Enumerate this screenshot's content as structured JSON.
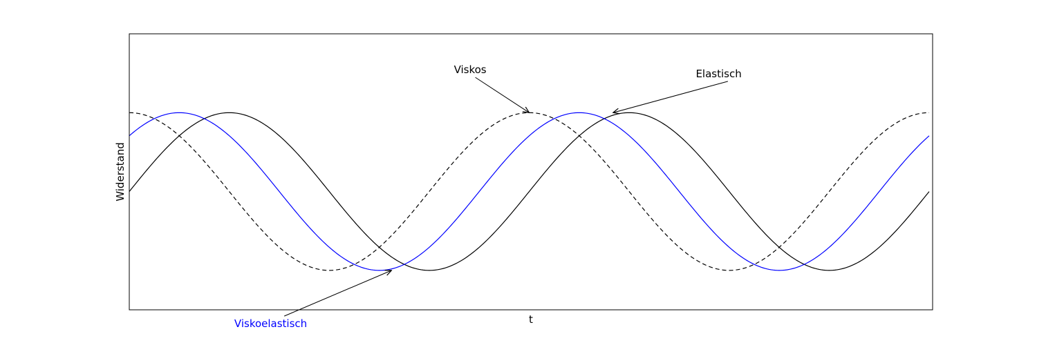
{
  "chart_data": {
    "type": "line",
    "title": "",
    "xlabel": "t",
    "ylabel": "Widerstand",
    "xlim": [
      0,
      12.566
    ],
    "ylim": [
      -1.5,
      2.0
    ],
    "grid": false,
    "ticks": "none",
    "series": [
      {
        "name": "Elastisch",
        "color": "#000000",
        "style": "solid",
        "phase_shift": 0,
        "x": [
          0,
          0.785,
          1.571,
          2.356,
          3.142,
          3.927,
          4.712,
          5.498,
          6.283,
          7.069,
          7.854,
          8.639,
          9.425,
          10.21,
          10.996,
          11.781,
          12.566
        ],
        "y": [
          0,
          0.707,
          1,
          0.707,
          0,
          -0.707,
          -1,
          -0.707,
          0,
          0.707,
          1,
          0.707,
          0,
          -0.707,
          -1,
          -0.707,
          0
        ]
      },
      {
        "name": "Viskos",
        "color": "#000000",
        "style": "dashed",
        "phase_shift": 1.571,
        "x": [
          0,
          0.785,
          1.571,
          2.356,
          3.142,
          3.927,
          4.712,
          5.498,
          6.283,
          7.069,
          7.854,
          8.639,
          9.425,
          10.21,
          10.996,
          11.781,
          12.566
        ],
        "y": [
          1,
          0.707,
          0,
          -0.707,
          -1,
          -0.707,
          0,
          0.707,
          1,
          0.707,
          0,
          -0.707,
          -1,
          -0.707,
          0,
          0.707,
          1
        ]
      },
      {
        "name": "Viskoelastisch",
        "color": "#0000ff",
        "style": "solid",
        "phase_shift": 0.785,
        "x": [
          0,
          0.785,
          1.571,
          2.356,
          3.142,
          3.927,
          4.712,
          5.498,
          6.283,
          7.069,
          7.854,
          8.639,
          9.425,
          10.21,
          10.996,
          11.781,
          12.566
        ],
        "y": [
          0.707,
          1,
          0.707,
          0,
          -0.707,
          -1,
          -0.707,
          0,
          0.707,
          1,
          0.707,
          0,
          -0.707,
          -1,
          -0.707,
          0,
          0.707
        ]
      }
    ],
    "annotations": [
      {
        "text": "Viskos",
        "color": "#000000",
        "point": [
          6.283,
          1.0
        ],
        "text_pos": [
          5.1,
          1.5
        ]
      },
      {
        "text": "Elastisch",
        "color": "#000000",
        "point": [
          7.6,
          1.0
        ],
        "text_pos": [
          8.9,
          1.45
        ]
      },
      {
        "text": "Viskoelastisch",
        "color": "#0000ff",
        "point": [
          4.12,
          -1.0
        ],
        "text_pos": [
          1.65,
          -1.72
        ]
      }
    ]
  }
}
